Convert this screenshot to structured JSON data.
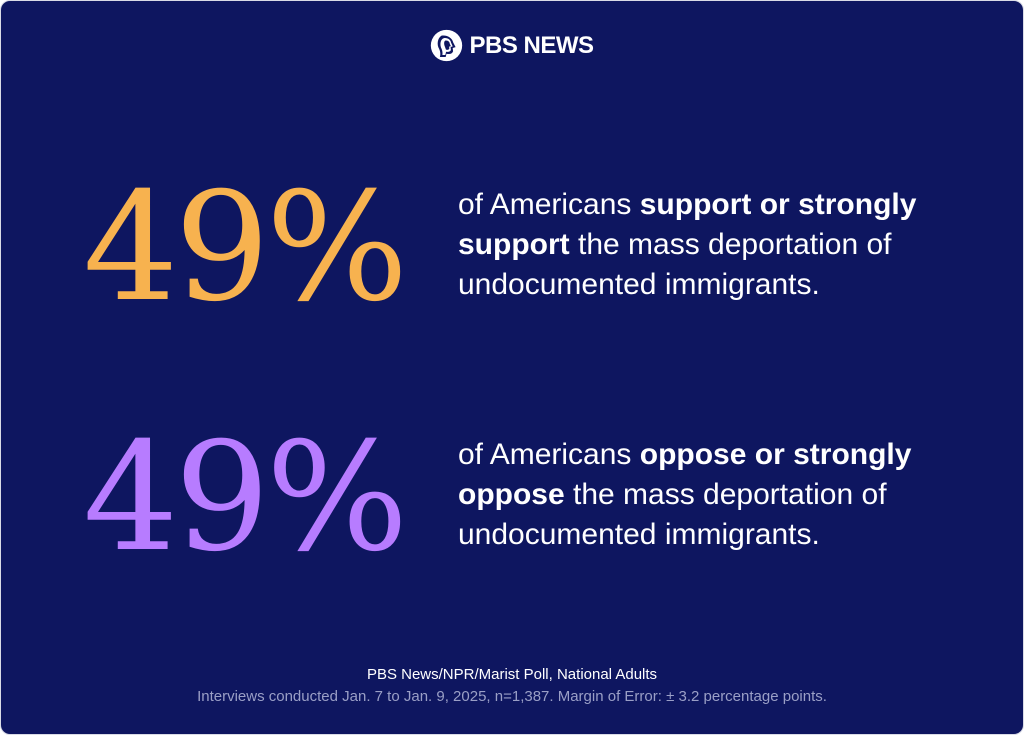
{
  "brand": {
    "name": "PBS NEWS",
    "logo_icon": "pbs-head-logo"
  },
  "colors": {
    "background": "#0e1660",
    "support": "#f7b24f",
    "oppose": "#b77cff",
    "text": "#ffffff",
    "muted_text": "#9a9fc6"
  },
  "stats": [
    {
      "value": "49%",
      "lead": "of Americans ",
      "emphasis": "support or strongly support",
      "rest": " the mass deportation of undocumented immigrants."
    },
    {
      "value": "49%",
      "lead": "of Americans ",
      "emphasis": "oppose or strongly oppose",
      "rest": " the mass deportation of undocumented immigrants."
    }
  ],
  "footer": {
    "source": "PBS News/NPR/Marist Poll, National Adults",
    "details": "Interviews conducted Jan. 7 to Jan. 9, 2025, n=1,387. Margin of Error: ± 3.2 percentage points."
  }
}
